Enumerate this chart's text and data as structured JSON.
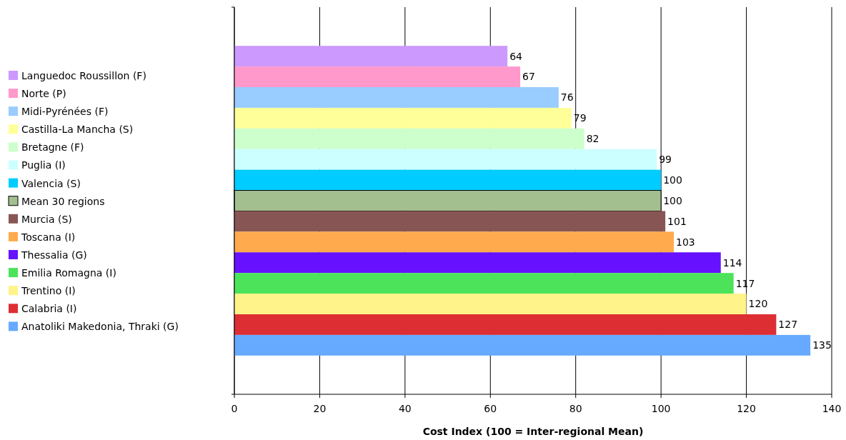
{
  "chart_data": {
    "type": "bar",
    "orientation": "horizontal",
    "xlabel": "Cost Index (100 = Inter-regional Mean)",
    "categories": [
      null
    ],
    "series": [
      {
        "name": "Languedoc Roussillon (F)",
        "color": "#cc99ff",
        "values": [
          64
        ]
      },
      {
        "name": "Norte (P)",
        "color": "#ff99cc",
        "values": [
          67
        ]
      },
      {
        "name": "Midi-Pyrénées (F)",
        "color": "#99ccff",
        "values": [
          76
        ]
      },
      {
        "name": "Castilla-La Mancha (S)",
        "color": "#ffff99",
        "values": [
          79
        ]
      },
      {
        "name": "Bretagne (F)",
        "color": "#ccffcc",
        "values": [
          82
        ]
      },
      {
        "name": "Puglia (I)",
        "color": "#ccffff",
        "values": [
          99
        ]
      },
      {
        "name": "Valencia (S)",
        "color": "#00ccff",
        "values": [
          100
        ]
      },
      {
        "name": "Mean 30 regions",
        "color": "#a3bf8f",
        "values": [
          100
        ]
      },
      {
        "name": "Murcia (S)",
        "color": "#885555",
        "values": [
          101
        ]
      },
      {
        "name": "Toscana (I)",
        "color": "#ffaa4d",
        "values": [
          103
        ]
      },
      {
        "name": "Thessalia (G)",
        "color": "#6611ff",
        "values": [
          114
        ]
      },
      {
        "name": "Emilia Romagna (I)",
        "color": "#4ce35a",
        "values": [
          117
        ]
      },
      {
        "name": "Trentino (I)",
        "color": "#fff38a",
        "values": [
          120
        ]
      },
      {
        "name": "Calabria (I)",
        "color": "#dd2e34",
        "values": [
          127
        ]
      },
      {
        "name": "Anatoliki Makedonia, Thraki (G)",
        "color": "#66aaff",
        "values": [
          135
        ]
      }
    ],
    "xlim": [
      0,
      140
    ],
    "xticks": [
      0,
      20,
      40,
      60,
      80,
      100,
      120,
      140
    ],
    "grid": "x",
    "legend": "left",
    "tick_labels": "x",
    "data_labels": true
  }
}
